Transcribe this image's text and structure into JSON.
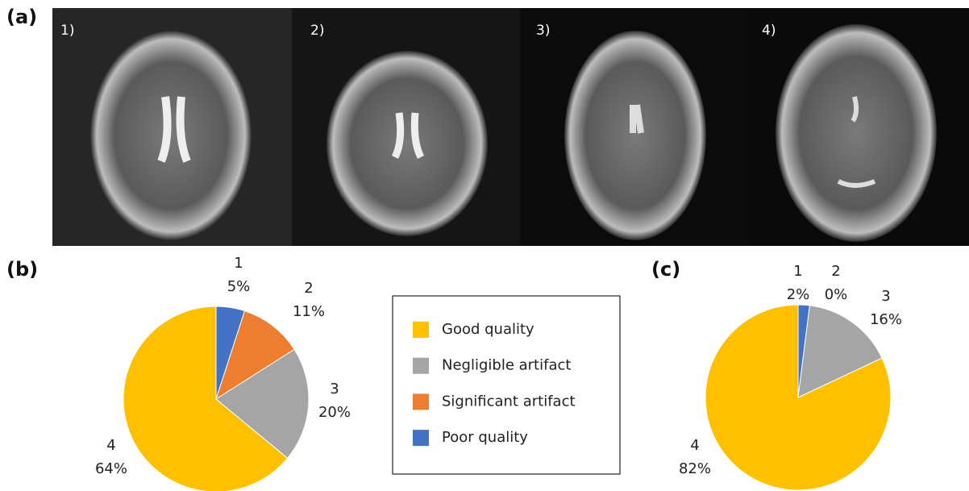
{
  "figure": {
    "panel_labels": [
      "(a)",
      "(b)",
      "(c)"
    ],
    "image_labels": [
      "1)",
      "2)",
      "3)",
      "4)"
    ]
  },
  "legend": {
    "entries": [
      {
        "name": "Good quality",
        "color": "#ffc000"
      },
      {
        "name": "Negligible artifact",
        "color": "#a5a5a5"
      },
      {
        "name": "Significant artifact",
        "color": "#ed7d31"
      },
      {
        "name": "Poor quality",
        "color": "#4472c4"
      }
    ]
  },
  "chart_data": [
    {
      "type": "pie",
      "categories": [
        "1",
        "2",
        "3",
        "4"
      ],
      "values": [
        5,
        11,
        20,
        64
      ],
      "value_labels": [
        "5%",
        "11%",
        "20%",
        "64%"
      ],
      "colors": [
        "#4472c4",
        "#ed7d31",
        "#a5a5a5",
        "#ffc000"
      ]
    },
    {
      "type": "pie",
      "categories": [
        "1",
        "2",
        "3",
        "4"
      ],
      "values": [
        2,
        0,
        16,
        82
      ],
      "value_labels": [
        "2%",
        "0%",
        "16%",
        "82%"
      ],
      "colors": [
        "#4472c4",
        "#ed7d31",
        "#a5a5a5",
        "#ffc000"
      ]
    }
  ]
}
